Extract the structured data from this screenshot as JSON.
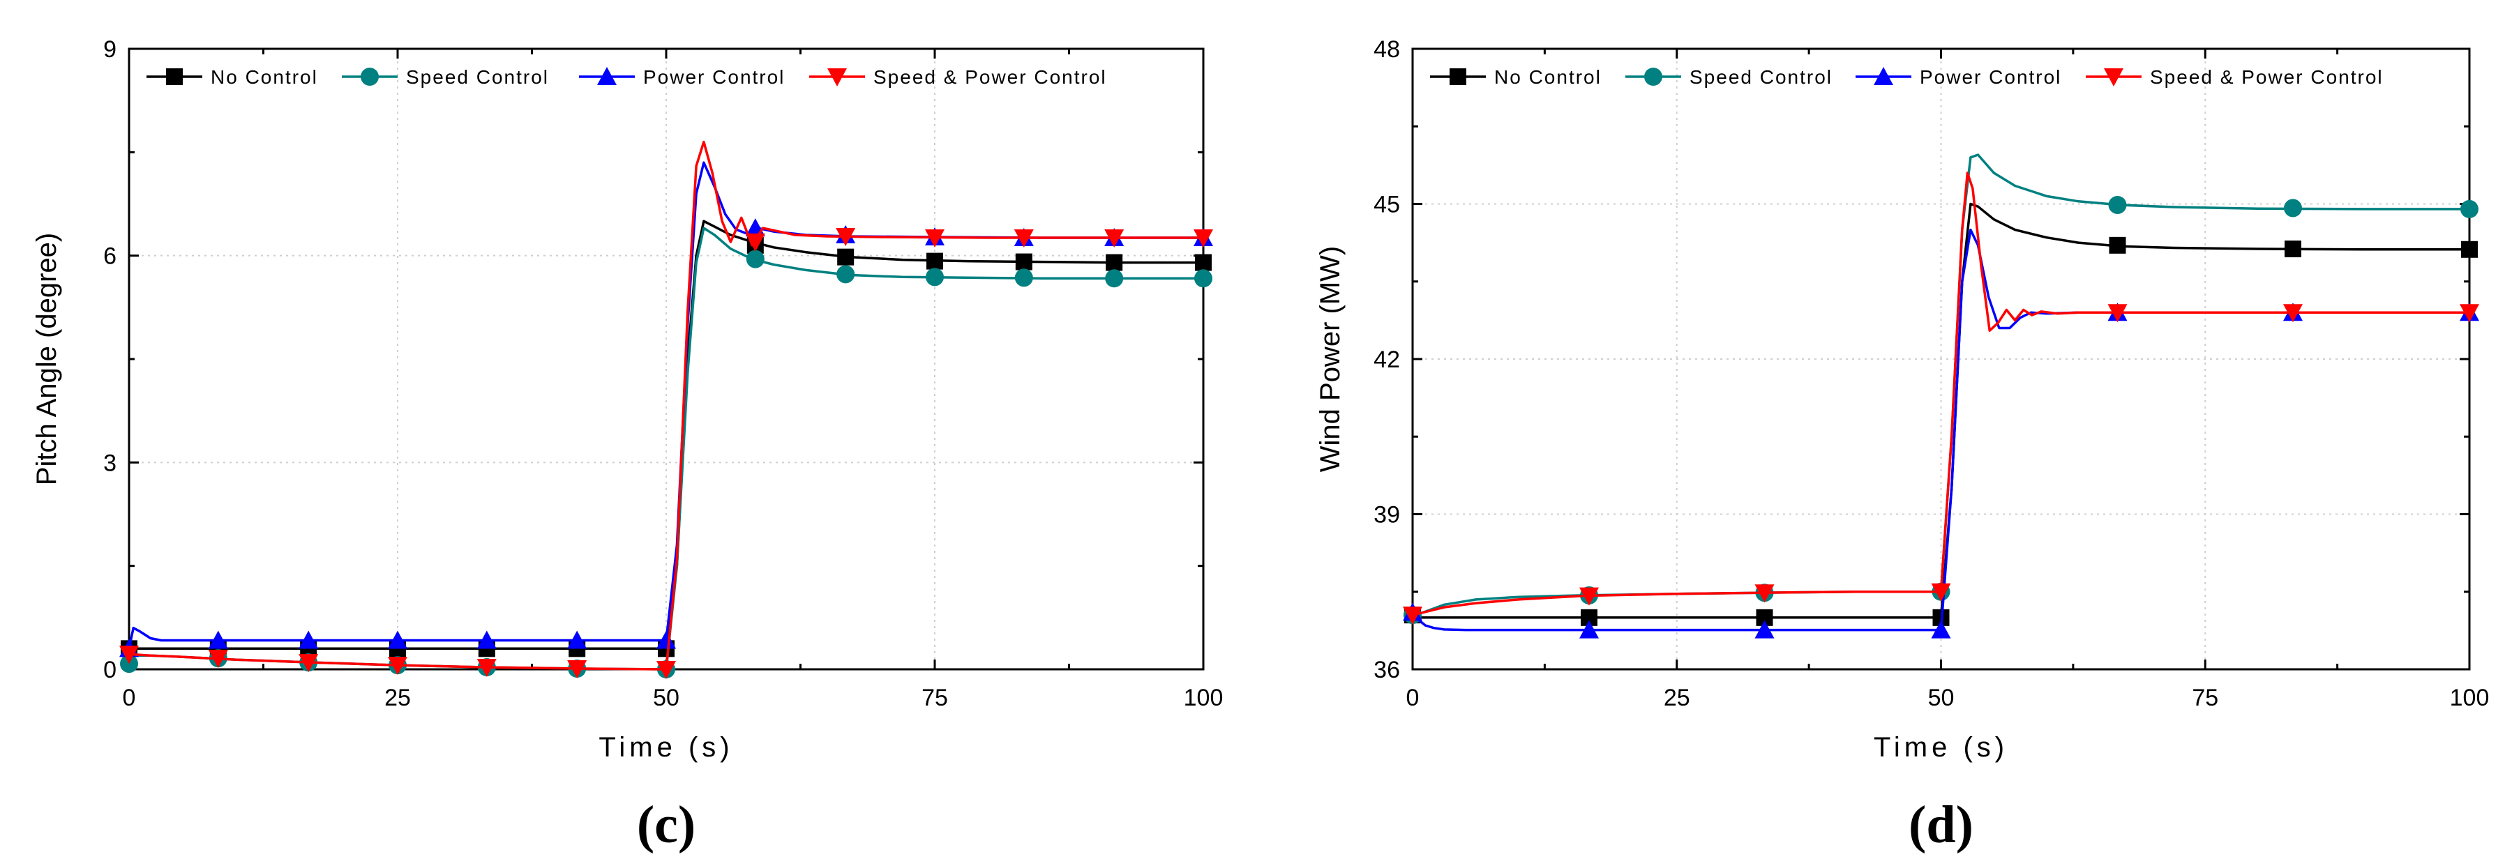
{
  "chart_data": [
    {
      "type": "line",
      "panel_label": "(c)",
      "xlabel": "Time (s)",
      "ylabel": "Pitch Angle (degree)",
      "xlim": [
        0,
        100
      ],
      "ylim": [
        0,
        9
      ],
      "xticks": [
        0,
        25,
        50,
        75,
        100
      ],
      "yticks": [
        0,
        3,
        6,
        9
      ],
      "grid": true,
      "legend_position": "top",
      "series": [
        {
          "name": "No Control",
          "color": "#000000",
          "marker": "square",
          "x": [
            0,
            1,
            5,
            10,
            20,
            30,
            40,
            50,
            51,
            52,
            52.8,
            53.5,
            54.5,
            56,
            58,
            60,
            63,
            67,
            72,
            78,
            85,
            92,
            100
          ],
          "y": [
            0.3,
            0.3,
            0.3,
            0.3,
            0.3,
            0.3,
            0.3,
            0.3,
            1.5,
            4.5,
            6.0,
            6.5,
            6.42,
            6.3,
            6.2,
            6.12,
            6.05,
            5.98,
            5.94,
            5.92,
            5.91,
            5.9,
            5.9
          ],
          "marker_x": [
            0,
            8.3,
            16.7,
            25,
            33.3,
            41.7,
            50,
            58.3,
            66.7,
            75,
            83.3,
            91.7,
            100
          ],
          "marker_y": [
            0.3,
            0.3,
            0.3,
            0.3,
            0.3,
            0.3,
            0.3,
            6.15,
            5.98,
            5.92,
            5.91,
            5.9,
            5.9
          ]
        },
        {
          "name": "Speed Control",
          "color": "#008080",
          "marker": "circle",
          "x": [
            0,
            0.4,
            0.8,
            2,
            5,
            10,
            17,
            25,
            33,
            42,
            50,
            51,
            52,
            52.8,
            53.5,
            54.5,
            56,
            58,
            60,
            63,
            67,
            72,
            78,
            85,
            92,
            100
          ],
          "y": [
            0.0,
            0.25,
            0.2,
            0.2,
            0.18,
            0.14,
            0.1,
            0.06,
            0.03,
            0.01,
            0.0,
            1.5,
            4.3,
            5.9,
            6.4,
            6.3,
            6.1,
            5.95,
            5.87,
            5.79,
            5.72,
            5.69,
            5.68,
            5.67,
            5.67,
            5.67
          ],
          "marker_x": [
            0,
            8.3,
            16.7,
            25,
            33.3,
            41.7,
            50,
            58.3,
            66.7,
            75,
            83.3,
            91.7,
            100
          ],
          "marker_y": [
            0.08,
            0.16,
            0.1,
            0.06,
            0.03,
            0.01,
            0.0,
            5.95,
            5.73,
            5.69,
            5.68,
            5.67,
            5.67
          ]
        },
        {
          "name": "Power Control",
          "color": "#0000ff",
          "marker": "triangle-up",
          "x": [
            0,
            0.4,
            1,
            2,
            3,
            5,
            10,
            20,
            30,
            40,
            50,
            51,
            52,
            52.8,
            53.5,
            54.5,
            55.5,
            56.5,
            57.5,
            58.5,
            60,
            63,
            67,
            75,
            85,
            100
          ],
          "y": [
            0.3,
            0.6,
            0.55,
            0.45,
            0.42,
            0.42,
            0.42,
            0.42,
            0.42,
            0.42,
            0.42,
            1.8,
            5.0,
            6.9,
            7.35,
            7.0,
            6.6,
            6.38,
            6.32,
            6.4,
            6.35,
            6.3,
            6.28,
            6.27,
            6.26,
            6.26
          ],
          "marker_x": [
            0,
            8.3,
            16.7,
            25,
            33.3,
            41.7,
            50,
            58.3,
            66.7,
            75,
            83.3,
            91.7,
            100
          ],
          "marker_y": [
            0.3,
            0.42,
            0.42,
            0.42,
            0.42,
            0.42,
            0.42,
            6.4,
            6.3,
            6.27,
            6.26,
            6.26,
            6.26
          ]
        },
        {
          "name": "Speed & Power Control",
          "color": "#ff0000",
          "marker": "triangle-down",
          "x": [
            0,
            2,
            5,
            10,
            17,
            25,
            33,
            42,
            50,
            51,
            52,
            52.8,
            53.5,
            54.3,
            55.2,
            56,
            57,
            58,
            59,
            60.5,
            62,
            65,
            70,
            80,
            100
          ],
          "y": [
            0.22,
            0.2,
            0.18,
            0.14,
            0.1,
            0.06,
            0.03,
            0.01,
            0.0,
            1.6,
            5.2,
            7.3,
            7.65,
            7.2,
            6.5,
            6.2,
            6.55,
            6.15,
            6.4,
            6.35,
            6.3,
            6.28,
            6.27,
            6.26,
            6.26
          ],
          "marker_x": [
            0,
            8.3,
            16.7,
            25,
            33.3,
            41.7,
            50,
            58.3,
            66.7,
            75,
            83.3,
            91.7,
            100
          ],
          "marker_y": [
            0.22,
            0.16,
            0.1,
            0.06,
            0.03,
            0.01,
            0.0,
            6.2,
            6.28,
            6.26,
            6.26,
            6.26,
            6.26
          ]
        }
      ]
    },
    {
      "type": "line",
      "panel_label": "(d)",
      "xlabel": "Time (s)",
      "ylabel": "Wind Power (MW)",
      "xlim": [
        0,
        100
      ],
      "ylim": [
        36,
        48
      ],
      "xticks": [
        0,
        25,
        50,
        75,
        100
      ],
      "yticks": [
        36,
        39,
        42,
        45,
        48
      ],
      "grid": true,
      "legend_position": "top",
      "series": [
        {
          "name": "No Control",
          "color": "#000000",
          "marker": "square",
          "x": [
            0,
            1,
            2,
            5,
            10,
            20,
            30,
            40,
            50,
            51,
            52,
            52.8,
            53.5,
            55,
            57,
            60,
            63,
            67,
            72,
            80,
            90,
            100
          ],
          "y": [
            37.0,
            37.0,
            37.0,
            37.0,
            37.0,
            37.0,
            37.0,
            37.0,
            37.0,
            39.5,
            43.5,
            45.0,
            44.95,
            44.7,
            44.5,
            44.35,
            44.25,
            44.18,
            44.15,
            44.13,
            44.12,
            44.12
          ],
          "marker_x": [
            0,
            16.7,
            33.3,
            50,
            66.7,
            83.3,
            100
          ],
          "marker_y": [
            37.05,
            37.0,
            37.0,
            37.0,
            44.2,
            44.13,
            44.12
          ]
        },
        {
          "name": "Speed Control",
          "color": "#008080",
          "marker": "circle",
          "x": [
            0,
            1,
            3,
            6,
            10,
            16,
            25,
            33,
            42,
            50,
            51,
            52,
            52.8,
            53.5,
            55,
            57,
            60,
            63,
            67,
            72,
            80,
            90,
            100
          ],
          "y": [
            37.05,
            37.1,
            37.25,
            37.35,
            37.4,
            37.43,
            37.46,
            37.48,
            37.5,
            37.5,
            40.5,
            44.5,
            45.9,
            45.95,
            45.6,
            45.35,
            45.15,
            45.05,
            44.98,
            44.94,
            44.91,
            44.9,
            44.9
          ],
          "marker_x": [
            0,
            16.7,
            33.3,
            50,
            66.7,
            83.3,
            100
          ],
          "marker_y": [
            37.05,
            37.43,
            37.48,
            37.5,
            44.98,
            44.92,
            44.9
          ]
        },
        {
          "name": "Power Control",
          "color": "#0000ff",
          "marker": "triangle-up",
          "x": [
            0,
            0.6,
            1.2,
            2,
            3,
            5,
            10,
            20,
            30,
            40,
            50,
            51,
            52,
            52.8,
            53.5,
            54.5,
            55.5,
            56.5,
            57.5,
            58.5,
            60,
            63,
            67,
            75,
            85,
            100
          ],
          "y": [
            37.1,
            36.95,
            36.85,
            36.8,
            36.77,
            36.76,
            36.76,
            36.76,
            36.76,
            36.76,
            36.76,
            39.5,
            43.5,
            44.5,
            44.2,
            43.2,
            42.6,
            42.6,
            42.8,
            42.9,
            42.88,
            42.9,
            42.9,
            42.9,
            42.9,
            42.9
          ],
          "marker_x": [
            0,
            16.7,
            33.3,
            50,
            66.7,
            83.3,
            100
          ],
          "marker_y": [
            37.1,
            36.76,
            36.76,
            36.76,
            42.9,
            42.9,
            42.9
          ]
        },
        {
          "name": "Speed & Power Control",
          "color": "#ff0000",
          "marker": "triangle-down",
          "x": [
            0,
            1,
            3,
            6,
            10,
            16,
            25,
            33,
            42,
            50,
            51,
            52,
            52.5,
            53,
            53.8,
            54.6,
            55.4,
            56.2,
            57,
            57.8,
            58.6,
            59.5,
            61,
            63,
            67,
            75,
            85,
            100
          ],
          "y": [
            37.05,
            37.1,
            37.2,
            37.28,
            37.35,
            37.42,
            37.46,
            37.48,
            37.5,
            37.5,
            40.5,
            44.5,
            45.6,
            45.3,
            43.8,
            42.55,
            42.7,
            42.95,
            42.75,
            42.95,
            42.85,
            42.92,
            42.88,
            42.9,
            42.9,
            42.9,
            42.9,
            42.9
          ],
          "marker_x": [
            0,
            16.7,
            33.3,
            50,
            66.7,
            83.3,
            100
          ],
          "marker_y": [
            37.05,
            37.42,
            37.48,
            37.5,
            42.9,
            42.9,
            42.9
          ]
        }
      ]
    }
  ]
}
